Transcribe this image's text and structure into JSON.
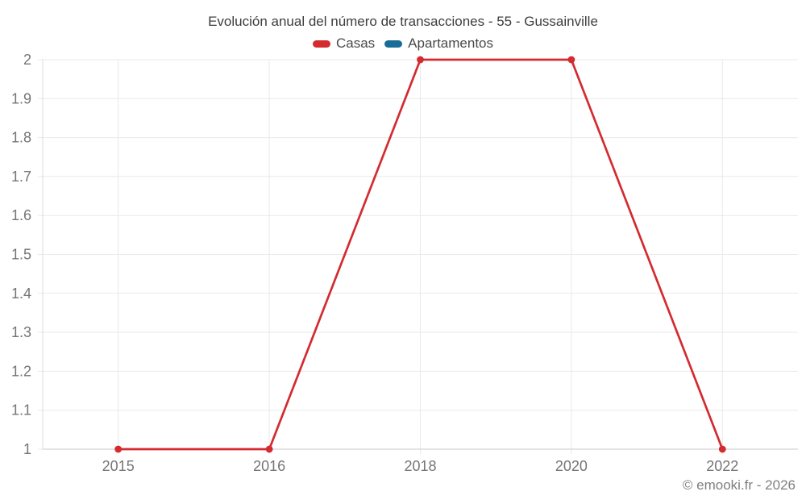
{
  "header": {
    "title": "Evolución anual del número de transacciones - 55 - Gussainville"
  },
  "legend": {
    "items": [
      {
        "id": "casas",
        "label": "Casas",
        "color": "#d32b30"
      },
      {
        "id": "apartamentos",
        "label": "Apartamentos",
        "color": "#176d97"
      }
    ]
  },
  "footer": {
    "copyright": "© emooki.fr - 2026"
  },
  "chart_data": {
    "type": "line",
    "title": "Evolución anual del número de transacciones - 55 - Gussainville",
    "categories": [
      "2015",
      "2016",
      "2018",
      "2020",
      "2022"
    ],
    "series": [
      {
        "name": "Casas",
        "color": "#d32b30",
        "values": [
          1,
          1,
          2,
          2,
          1
        ]
      },
      {
        "name": "Apartamentos",
        "color": "#176d97",
        "values": []
      }
    ],
    "xlabel": "",
    "ylabel": "",
    "ylim": [
      1,
      2
    ],
    "y_tick_labels": [
      "1",
      "1.1",
      "1.2",
      "1.3",
      "1.4",
      "1.5",
      "1.6",
      "1.7",
      "1.8",
      "1.9",
      "2"
    ],
    "grid": true,
    "legend_position": "top"
  },
  "style": {
    "background": "#ffffff",
    "grid_color": "#e9e9e9",
    "y_axis_border_color": "#dedede",
    "x_axis_border_color": "#c9c9c9",
    "tick_label_color": "#757575",
    "title_color": "#3d3d3d",
    "legend_text_color": "#4a4a4a",
    "footer_color": "#7f7f7f",
    "point_radius": 4.4,
    "line_width": 2.7
  }
}
